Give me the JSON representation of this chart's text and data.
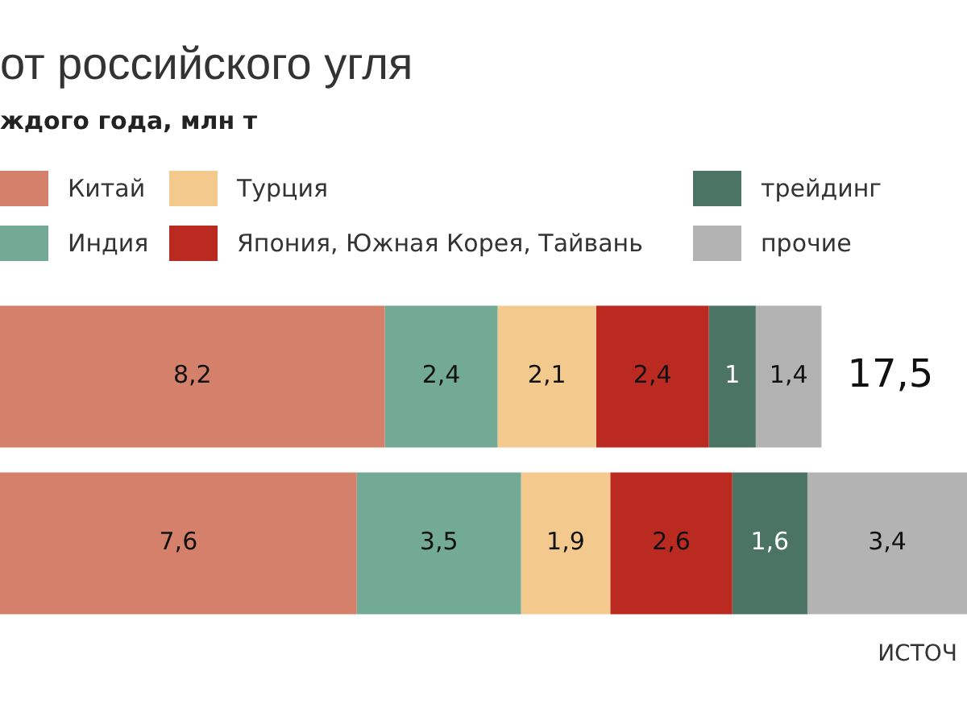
{
  "chart_data": {
    "type": "bar",
    "orientation": "horizontal",
    "stacked": true,
    "title": "от российского угля",
    "subtitle": "ждого года, млн т",
    "categories": [
      null,
      null
    ],
    "legend": "top left",
    "series": [
      {
        "name": "Китай",
        "color": "#d5806a",
        "values": [
          8.2,
          7.6
        ],
        "value_labels": [
          "8,2",
          "7,6"
        ]
      },
      {
        "name": "Индия",
        "color": "#72aa96",
        "values": [
          2.4,
          3.5
        ],
        "value_labels": [
          "2,4",
          "3,5"
        ]
      },
      {
        "name": "Турция",
        "color": "#f4c98e",
        "values": [
          2.1,
          1.9
        ],
        "value_labels": [
          "2,1",
          "1,9"
        ]
      },
      {
        "name": "Япония, Южная Корея, Тайвань",
        "color": "#bb2a20",
        "values": [
          2.4,
          2.6
        ],
        "value_labels": [
          "2,4",
          "2,6"
        ]
      },
      {
        "name": "трейдинг",
        "color": "#4c7464",
        "values": [
          1,
          1.6
        ],
        "value_labels": [
          "1",
          "1,6"
        ]
      },
      {
        "name": "прочие",
        "color": "#b3b3b3",
        "values": [
          1.4,
          3.4
        ],
        "value_labels": [
          "1,4",
          "3,4"
        ]
      }
    ],
    "totals": [
      "17,5",
      null
    ],
    "annotations": [
      "ИСТОЧ"
    ]
  }
}
